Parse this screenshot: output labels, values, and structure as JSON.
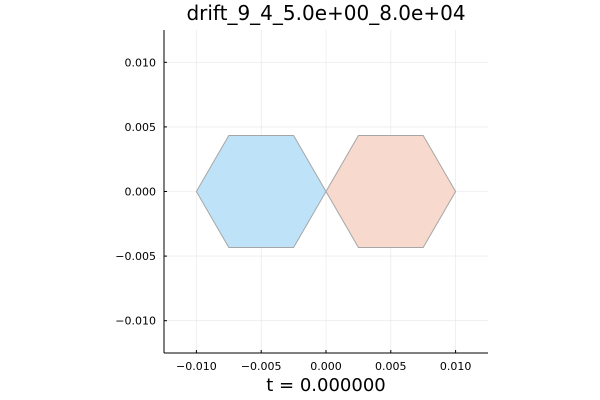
{
  "chart_data": {
    "type": "polygon",
    "title": "drift_9_4_5.0e+00_8.0e+04",
    "xlabel": "t = 0.000000",
    "ylabel": "",
    "xlim": [
      -0.0125,
      0.0125
    ],
    "ylim": [
      -0.0125,
      0.0125
    ],
    "aspect": "equal",
    "grid": true,
    "legend": "none",
    "xticks": [
      -0.01,
      -0.005,
      0.0,
      0.005,
      0.01
    ],
    "xtick_labels": [
      "−0.010",
      "−0.005",
      "0.000",
      "0.005",
      "0.010"
    ],
    "yticks": [
      -0.01,
      -0.005,
      0.0,
      0.005,
      0.01
    ],
    "ytick_labels": [
      "−0.010",
      "−0.005",
      "0.000",
      "0.005",
      "0.010"
    ],
    "series": [
      {
        "fill": "#bee3f9",
        "stroke": "#a6a6a6",
        "points": [
          [
            -0.01,
            0.0
          ],
          [
            -0.0075,
            0.00433
          ],
          [
            -0.0025,
            0.00433
          ],
          [
            0.0,
            0.0
          ],
          [
            -0.0025,
            -0.00433
          ],
          [
            -0.0075,
            -0.00433
          ]
        ]
      },
      {
        "fill": "#f7d9cd",
        "stroke": "#a6a6a6",
        "points": [
          [
            0.0,
            0.0
          ],
          [
            0.0025,
            0.00433
          ],
          [
            0.0075,
            0.00433
          ],
          [
            0.01,
            0.0
          ],
          [
            0.0075,
            -0.00433
          ],
          [
            0.0025,
            -0.00433
          ]
        ]
      }
    ]
  }
}
